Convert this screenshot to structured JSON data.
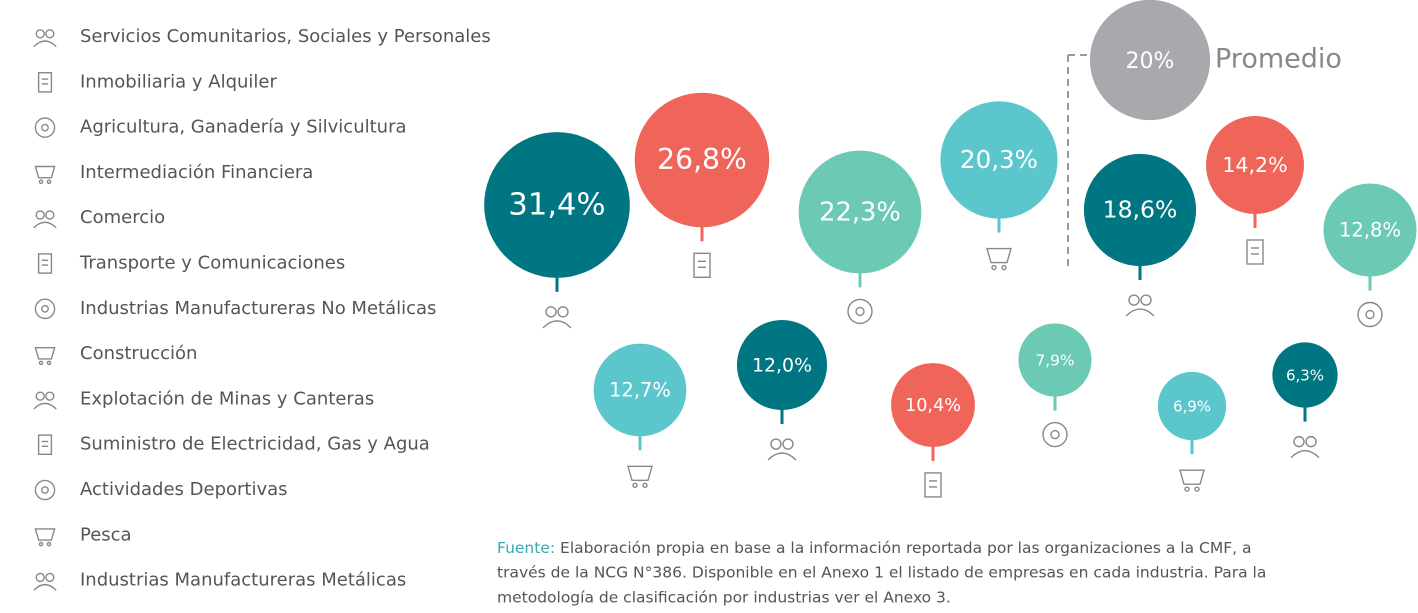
{
  "chart_data": {
    "type": "bubble",
    "categories": [
      "Servicios Comunitarios, Sociales y Personales",
      "Inmobiliaria y Alquiler",
      "Agricultura, Ganadería y Silvicultura",
      "Intermediación Financiera",
      "Comercio",
      "Transporte y Comunicaciones",
      "Industrias Manufactureras No Metálicas",
      "Construcción",
      "Explotación de Minas y Canteras",
      "Suministro de Electricidad, Gas y Agua",
      "Actividades Deportivas",
      "Pesca",
      "Industrias Manufactureras Metálicas"
    ],
    "values": [
      31.4,
      26.8,
      22.3,
      20.3,
      18.6,
      14.2,
      12.8,
      12.7,
      12.0,
      10.4,
      7.9,
      6.9,
      6.3
    ],
    "value_labels": [
      "31,4%",
      "26,8%",
      "22,3%",
      "20,3%",
      "18,6%",
      "14,2%",
      "12,8%",
      "12,7%",
      "12,0%",
      "10,4%",
      "7,9%",
      "6,9%",
      "6,3%"
    ],
    "colors": [
      "#007682",
      "#f0655a",
      "#6ccab4",
      "#5bc6cc",
      "#007682",
      "#f0655a",
      "#6ccab4",
      "#5bc6cc",
      "#007682",
      "#f0655a",
      "#6ccab4",
      "#5bc6cc",
      "#007682"
    ],
    "average": {
      "name": "Promedio",
      "value": 20,
      "value_label": "20%",
      "color": "#a7a9ac"
    },
    "source": {
      "label": "Fuente:",
      "lines": [
        "Elaboración propia en base a la información reportada por las organizaciones a la CMF, a",
        "través de la NCG N°386. Disponible en el Anexo 1 el listado de empresas en cada industria. Para la",
        "metodología de clasificación por industrias ver el Anexo 3."
      ]
    }
  }
}
